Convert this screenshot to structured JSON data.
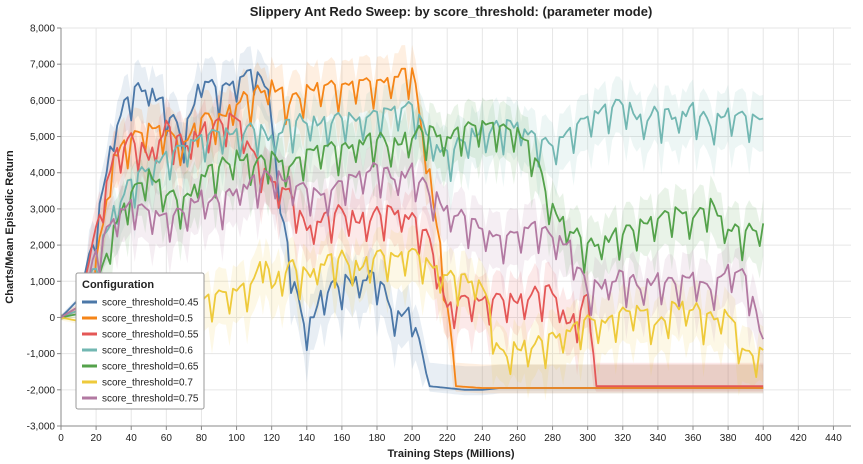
{
  "chart_data": {
    "type": "line",
    "title": "Slippery Ant Redo Sweep: by score_threshold: (parameter mode)",
    "xlabel": "Training Steps (Millions)",
    "ylabel": "Charts/Mean Episodic Return",
    "xlim": [
      0,
      450
    ],
    "ylim": [
      -3000,
      8000
    ],
    "x_ticks": [
      0,
      20,
      40,
      60,
      80,
      100,
      120,
      140,
      160,
      180,
      200,
      220,
      240,
      260,
      280,
      300,
      320,
      340,
      360,
      380,
      400,
      420,
      440
    ],
    "y_ticks": [
      -3000,
      -2000,
      -1000,
      0,
      1000,
      2000,
      3000,
      4000,
      5000,
      6000,
      7000,
      8000
    ],
    "y_tick_labels": [
      "-3,000",
      "-2,000",
      "-1,000",
      "0",
      "1,000",
      "2,000",
      "3,000",
      "4,000",
      "5,000",
      "6,000",
      "7,000",
      "8,000"
    ],
    "grid": true,
    "legend": {
      "title": "Configuration",
      "position": "bottom-left"
    },
    "series": [
      {
        "name": "score_threshold=0.45",
        "color": "#4c78a8",
        "x": [
          0,
          10,
          20,
          30,
          40,
          50,
          60,
          70,
          80,
          90,
          100,
          110,
          118,
          125,
          135,
          140,
          150,
          160,
          170,
          180,
          190,
          200,
          210,
          220,
          230,
          240,
          250,
          260,
          280,
          300,
          320,
          340,
          360,
          380,
          400
        ],
        "y": [
          0,
          500,
          2500,
          5200,
          6300,
          6400,
          5800,
          5000,
          6700,
          6300,
          6600,
          6900,
          6300,
          3000,
          500,
          -300,
          800,
          1000,
          1100,
          1200,
          100,
          200,
          -1900,
          -1950,
          -2000,
          -2000,
          -1950,
          -1950,
          -1950,
          -1950,
          -1950,
          -1950,
          -1950,
          -1950,
          -1950
        ]
      },
      {
        "name": "score_threshold=0.5",
        "color": "#f58518",
        "x": [
          0,
          10,
          20,
          30,
          40,
          50,
          60,
          70,
          80,
          90,
          100,
          110,
          120,
          130,
          140,
          150,
          160,
          170,
          180,
          190,
          200,
          210,
          220,
          225,
          240,
          260,
          280,
          300,
          320,
          340,
          360,
          380,
          400
        ],
        "y": [
          0,
          300,
          1500,
          4500,
          5000,
          5300,
          5200,
          4800,
          5600,
          5500,
          6000,
          6200,
          6500,
          6000,
          6300,
          6500,
          6400,
          6600,
          6500,
          6700,
          6900,
          4000,
          500,
          -1900,
          -1950,
          -1950,
          -1950,
          -1950,
          -1950,
          -1950,
          -1950,
          -1950,
          -1950
        ]
      },
      {
        "name": "score_threshold=0.55",
        "color": "#e45756",
        "x": [
          0,
          10,
          20,
          30,
          40,
          50,
          60,
          70,
          80,
          90,
          100,
          110,
          120,
          130,
          140,
          150,
          160,
          170,
          180,
          190,
          200,
          210,
          220,
          230,
          240,
          250,
          260,
          270,
          280,
          290,
          300,
          305,
          320,
          340,
          360,
          380,
          400
        ],
        "y": [
          0,
          200,
          2500,
          4500,
          5000,
          4500,
          5300,
          4800,
          5200,
          5400,
          5600,
          4500,
          3800,
          3500,
          2500,
          2800,
          3000,
          2700,
          2900,
          3000,
          2800,
          2200,
          300,
          600,
          500,
          600,
          500,
          700,
          800,
          -200,
          600,
          -1900,
          -1900,
          -1900,
          -1900,
          -1900,
          -1900
        ]
      },
      {
        "name": "score_threshold=0.6",
        "color": "#72b7b2",
        "x": [
          0,
          10,
          20,
          30,
          40,
          50,
          60,
          70,
          80,
          90,
          100,
          110,
          120,
          130,
          140,
          150,
          160,
          170,
          180,
          190,
          200,
          210,
          220,
          230,
          240,
          250,
          260,
          270,
          280,
          290,
          300,
          310,
          320,
          330,
          340,
          350,
          360,
          370,
          380,
          390,
          400
        ],
        "y": [
          0,
          200,
          1500,
          3000,
          3800,
          4200,
          4500,
          4800,
          5000,
          5200,
          5100,
          5300,
          5000,
          5400,
          5500,
          5400,
          5600,
          5500,
          5700,
          5800,
          5900,
          5000,
          4500,
          5000,
          5200,
          5300,
          5400,
          5000,
          4800,
          5200,
          5600,
          5800,
          6000,
          5500,
          5700,
          5600,
          5800,
          5400,
          5700,
          5600,
          5500
        ]
      },
      {
        "name": "score_threshold=0.65",
        "color": "#54a24b",
        "x": [
          0,
          10,
          20,
          30,
          40,
          50,
          60,
          70,
          80,
          90,
          100,
          110,
          120,
          130,
          140,
          150,
          160,
          170,
          180,
          190,
          200,
          210,
          220,
          230,
          240,
          250,
          260,
          270,
          280,
          290,
          300,
          310,
          320,
          330,
          340,
          350,
          360,
          370,
          380,
          390,
          400
        ],
        "y": [
          0,
          100,
          800,
          2500,
          3500,
          4000,
          3500,
          3200,
          4000,
          4200,
          4500,
          4300,
          4500,
          4200,
          4600,
          4800,
          4700,
          4900,
          5000,
          4800,
          5100,
          5200,
          5000,
          5300,
          5400,
          5300,
          5200,
          4500,
          3000,
          2500,
          2000,
          2200,
          2400,
          2600,
          2800,
          3000,
          2800,
          3200,
          2500,
          2400,
          2600
        ]
      },
      {
        "name": "score_threshold=0.7",
        "color": "#eeca3b",
        "x": [
          0,
          10,
          20,
          30,
          40,
          50,
          60,
          70,
          80,
          90,
          100,
          110,
          115,
          120,
          130,
          140,
          150,
          160,
          170,
          180,
          190,
          200,
          210,
          220,
          230,
          240,
          250,
          260,
          270,
          280,
          290,
          300,
          310,
          320,
          330,
          340,
          350,
          360,
          370,
          380,
          390,
          400
        ],
        "y": [
          0,
          -100,
          -300,
          -500,
          -600,
          -400,
          -200,
          -300,
          500,
          700,
          800,
          1000,
          1800,
          900,
          1500,
          1200,
          1600,
          1700,
          1400,
          1800,
          1700,
          1900,
          1500,
          1200,
          1100,
          1000,
          -1000,
          -800,
          -700,
          -500,
          -300,
          0,
          -100,
          200,
          300,
          -200,
          400,
          300,
          0,
          200,
          -1000,
          -900
        ]
      },
      {
        "name": "score_threshold=0.75",
        "color": "#b279a2",
        "x": [
          0,
          10,
          20,
          30,
          40,
          50,
          60,
          70,
          80,
          90,
          100,
          110,
          120,
          130,
          140,
          150,
          160,
          170,
          180,
          190,
          200,
          210,
          220,
          230,
          240,
          250,
          260,
          270,
          280,
          290,
          300,
          310,
          320,
          330,
          340,
          350,
          360,
          370,
          380,
          390,
          400
        ],
        "y": [
          0,
          300,
          1800,
          2800,
          3200,
          3000,
          2800,
          3000,
          3400,
          3200,
          3600,
          3800,
          4000,
          3800,
          3600,
          3400,
          3800,
          4000,
          4200,
          3900,
          4100,
          3500,
          3000,
          2800,
          2500,
          2200,
          2400,
          2600,
          2300,
          2000,
          800,
          1000,
          1200,
          900,
          1100,
          1000,
          1200,
          800,
          1400,
          1200,
          -600
        ]
      }
    ]
  }
}
